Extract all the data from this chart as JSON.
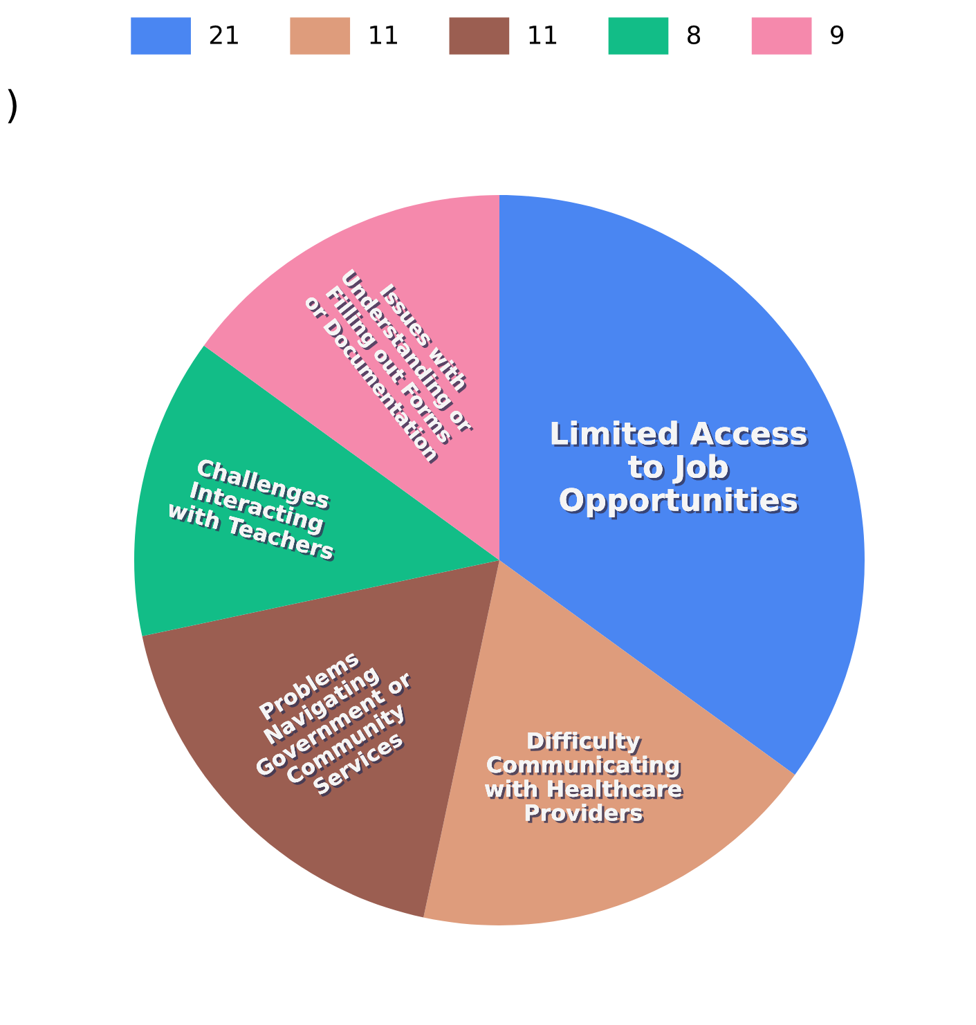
{
  "chart_data": {
    "type": "pie",
    "categories": [
      "21",
      "11",
      "11",
      "8",
      "9"
    ],
    "values": [
      21,
      11,
      11,
      8,
      9
    ],
    "colors": [
      "#4a86f2",
      "#de9c7c",
      "#9b5e51",
      "#12bd87",
      "#f589ac"
    ],
    "legend": "top",
    "annotations": [
      ")",
      "Limited Access\nto Job\nOpportunities",
      "Difficulty\nCommunicating\nwith Healthcare\nProviders",
      "Problems\nNavigating\nGovernment or\nCommunity\nServices",
      "Challenges\nInteracting\nwith Teachers",
      "Issues with\nUnderstanding or\nFilling out Forms\nor Documentation"
    ]
  }
}
